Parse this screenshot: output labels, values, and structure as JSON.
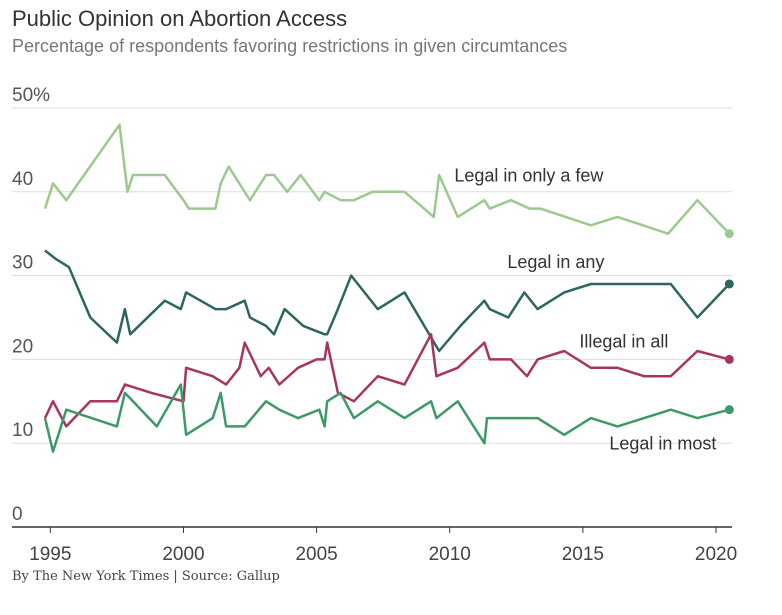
{
  "chart_data": {
    "type": "line",
    "title": "Public Opinion on Abortion Access",
    "subtitle": "Percentage of respondents favoring restrictions in given circumtances",
    "source": "By The New York Times | Source: Gallup",
    "xlim": [
      1994.5,
      2020.6
    ],
    "ylim": [
      0,
      50
    ],
    "yticks": [
      0,
      10,
      20,
      30,
      40,
      50
    ],
    "ytick_labels": [
      "0",
      "10",
      "20",
      "30",
      "40",
      "50%"
    ],
    "xticks": [
      1995,
      2000,
      2005,
      2010,
      2015,
      2020
    ],
    "xtick_labels": [
      "1995",
      "2000",
      "2005",
      "2010",
      "2015",
      "2020"
    ],
    "grid": true,
    "series": [
      {
        "name": "Legal in only a few",
        "color": "#9cc98f",
        "points": [
          [
            1994.8,
            38
          ],
          [
            1995.1,
            41
          ],
          [
            1995.6,
            39
          ],
          [
            1997.6,
            48
          ],
          [
            1997.9,
            40
          ],
          [
            1998.1,
            42
          ],
          [
            1999.3,
            42
          ],
          [
            2000.0,
            39
          ],
          [
            2000.2,
            38
          ],
          [
            2001.2,
            38
          ],
          [
            2001.4,
            41
          ],
          [
            2001.7,
            43
          ],
          [
            2002.5,
            39
          ],
          [
            2003.1,
            42
          ],
          [
            2003.4,
            42
          ],
          [
            2003.9,
            40
          ],
          [
            2004.4,
            42
          ],
          [
            2005.1,
            39
          ],
          [
            2005.3,
            40
          ],
          [
            2005.9,
            39
          ],
          [
            2006.4,
            39
          ],
          [
            2007.1,
            40
          ],
          [
            2008.3,
            40
          ],
          [
            2009.4,
            37
          ],
          [
            2009.6,
            42
          ],
          [
            2010.3,
            37
          ],
          [
            2011.3,
            39
          ],
          [
            2011.5,
            38
          ],
          [
            2012.3,
            39
          ],
          [
            2013.0,
            38
          ],
          [
            2013.4,
            38
          ],
          [
            2015.3,
            36
          ],
          [
            2016.3,
            37
          ],
          [
            2018.2,
            35
          ],
          [
            2019.3,
            39
          ],
          [
            2020.5,
            35
          ]
        ]
      },
      {
        "name": "Legal in any",
        "color": "#2b6660",
        "points": [
          [
            1994.8,
            33
          ],
          [
            1995.2,
            32
          ],
          [
            1995.7,
            31
          ],
          [
            1996.5,
            25
          ],
          [
            1997.5,
            22
          ],
          [
            1997.8,
            26
          ],
          [
            1998.0,
            23
          ],
          [
            1999.3,
            27
          ],
          [
            1999.9,
            26
          ],
          [
            2000.1,
            28
          ],
          [
            2001.2,
            26
          ],
          [
            2001.6,
            26
          ],
          [
            2002.3,
            27
          ],
          [
            2002.5,
            25
          ],
          [
            2003.1,
            24
          ],
          [
            2003.4,
            23
          ],
          [
            2003.8,
            26
          ],
          [
            2004.5,
            24
          ],
          [
            2005.3,
            23
          ],
          [
            2005.4,
            23
          ],
          [
            2005.8,
            26
          ],
          [
            2006.3,
            30
          ],
          [
            2007.3,
            26
          ],
          [
            2008.3,
            28
          ],
          [
            2009.6,
            21
          ],
          [
            2010.4,
            24
          ],
          [
            2011.3,
            27
          ],
          [
            2011.5,
            26
          ],
          [
            2012.2,
            25
          ],
          [
            2012.8,
            28
          ],
          [
            2013.3,
            26
          ],
          [
            2014.3,
            28
          ],
          [
            2015.3,
            29
          ],
          [
            2016.3,
            29
          ],
          [
            2018.3,
            29
          ],
          [
            2019.3,
            25
          ],
          [
            2020.5,
            29
          ]
        ]
      },
      {
        "name": "Illegal in all",
        "color": "#a83560",
        "points": [
          [
            1994.8,
            13
          ],
          [
            1995.1,
            15
          ],
          [
            1995.6,
            12
          ],
          [
            1996.5,
            15
          ],
          [
            1997.5,
            15
          ],
          [
            1997.8,
            17
          ],
          [
            1998.8,
            16
          ],
          [
            2000.0,
            15
          ],
          [
            2000.1,
            19
          ],
          [
            2001.1,
            18
          ],
          [
            2001.6,
            17
          ],
          [
            2002.1,
            19
          ],
          [
            2002.3,
            22
          ],
          [
            2002.9,
            18
          ],
          [
            2003.2,
            19
          ],
          [
            2003.6,
            17
          ],
          [
            2004.3,
            19
          ],
          [
            2005.0,
            20
          ],
          [
            2005.3,
            20
          ],
          [
            2005.4,
            22
          ],
          [
            2005.8,
            16
          ],
          [
            2006.4,
            15
          ],
          [
            2007.3,
            18
          ],
          [
            2008.3,
            17
          ],
          [
            2009.3,
            23
          ],
          [
            2009.5,
            18
          ],
          [
            2010.3,
            19
          ],
          [
            2011.3,
            22
          ],
          [
            2011.5,
            20
          ],
          [
            2012.3,
            20
          ],
          [
            2012.9,
            18
          ],
          [
            2013.3,
            20
          ],
          [
            2014.3,
            21
          ],
          [
            2015.3,
            19
          ],
          [
            2016.3,
            19
          ],
          [
            2017.3,
            18
          ],
          [
            2018.3,
            18
          ],
          [
            2019.3,
            21
          ],
          [
            2020.5,
            20
          ]
        ]
      },
      {
        "name": "Legal in most",
        "color": "#3d9a66",
        "points": [
          [
            1994.8,
            13
          ],
          [
            1995.1,
            9
          ],
          [
            1995.6,
            14
          ],
          [
            1997.5,
            12
          ],
          [
            1997.8,
            16
          ],
          [
            1999.0,
            12
          ],
          [
            1999.9,
            17
          ],
          [
            2000.1,
            11
          ],
          [
            2001.1,
            13
          ],
          [
            2001.4,
            16
          ],
          [
            2001.6,
            12
          ],
          [
            2002.3,
            12
          ],
          [
            2003.1,
            15
          ],
          [
            2003.6,
            14
          ],
          [
            2004.3,
            13
          ],
          [
            2005.1,
            14
          ],
          [
            2005.3,
            12
          ],
          [
            2005.4,
            15
          ],
          [
            2005.9,
            16
          ],
          [
            2006.4,
            13
          ],
          [
            2007.3,
            15
          ],
          [
            2008.3,
            13
          ],
          [
            2009.3,
            15
          ],
          [
            2009.5,
            13
          ],
          [
            2010.3,
            15
          ],
          [
            2011.3,
            10
          ],
          [
            2011.4,
            13
          ],
          [
            2012.3,
            13
          ],
          [
            2013.3,
            13
          ],
          [
            2014.3,
            11
          ],
          [
            2015.3,
            13
          ],
          [
            2016.3,
            12
          ],
          [
            2017.3,
            13
          ],
          [
            2018.3,
            14
          ],
          [
            2019.3,
            13
          ],
          [
            2020.5,
            14
          ]
        ]
      }
    ]
  }
}
